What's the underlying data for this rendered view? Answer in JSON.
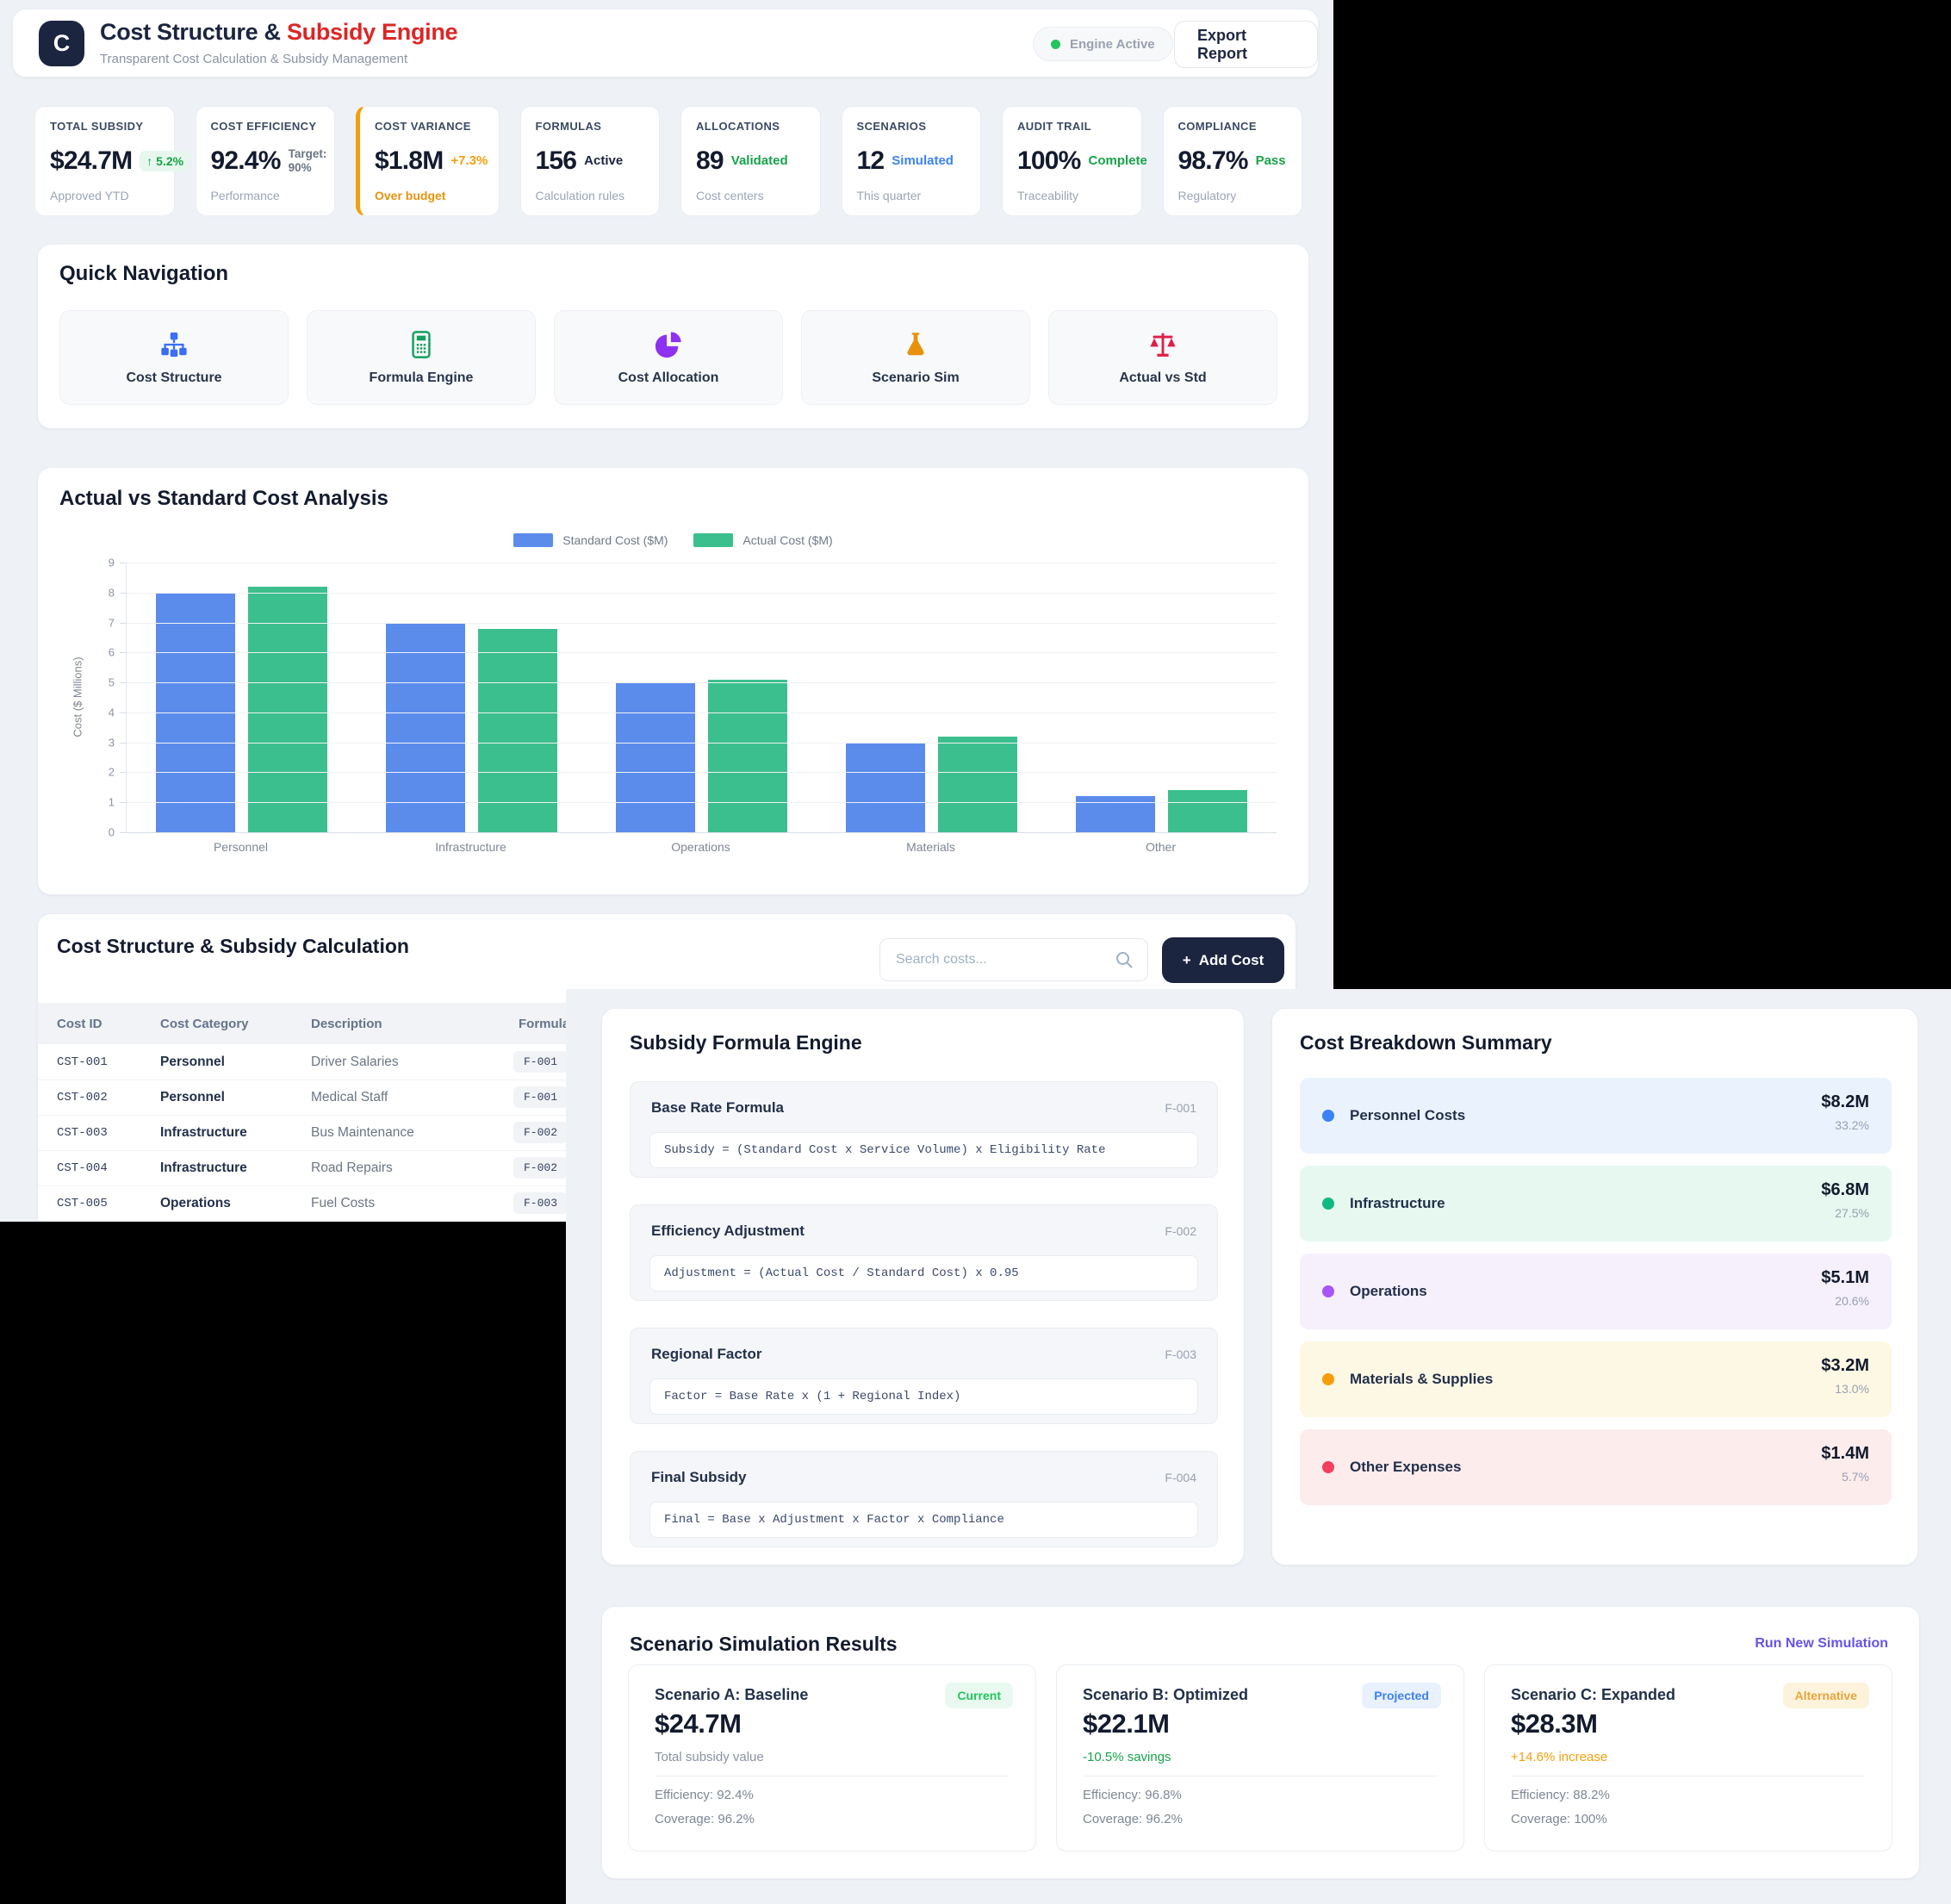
{
  "header": {
    "logo": "C",
    "title_primary": "Cost Structure & ",
    "title_accent": "Subsidy Engine",
    "subtitle": "Transparent Cost Calculation & Subsidy Management",
    "status_label": "Engine Active",
    "status_color": "#22c55e",
    "export_label": "Export Report"
  },
  "kpis": [
    {
      "label": "TOTAL SUBSIDY",
      "value": "$24.7M",
      "delta": "↑ 5.2%",
      "delta_variant": "badge-green",
      "note": "Approved YTD",
      "highlight": false
    },
    {
      "label": "COST EFFICIENCY",
      "value": "92.4%",
      "delta": "Target: 90%",
      "delta_variant": "muted-stack",
      "note": "Performance",
      "highlight": false
    },
    {
      "label": "COST VARIANCE",
      "value": "$1.8M",
      "delta": "+7.3%",
      "delta_variant": "orange",
      "note": "Over budget",
      "note_variant": "orange",
      "highlight": true
    },
    {
      "label": "FORMULAS",
      "value": "156",
      "delta": "Active",
      "delta_variant": "dark",
      "note": "Calculation rules",
      "highlight": false
    },
    {
      "label": "ALLOCATIONS",
      "value": "89",
      "delta": "Validated",
      "delta_variant": "green",
      "note": "Cost centers",
      "highlight": false
    },
    {
      "label": "SCENARIOS",
      "value": "12",
      "delta": "Simulated",
      "delta_variant": "blue",
      "note": "This quarter",
      "highlight": false
    },
    {
      "label": "AUDIT TRAIL",
      "value": "100%",
      "delta": "Complete",
      "delta_variant": "green",
      "note": "Traceability",
      "highlight": false
    },
    {
      "label": "COMPLIANCE",
      "value": "98.7%",
      "delta": "Pass",
      "delta_variant": "green",
      "note": "Regulatory",
      "highlight": false
    }
  ],
  "quick_nav": {
    "title": "Quick Navigation",
    "items": [
      {
        "label": "Cost Structure",
        "icon": "sitemap-icon",
        "color": "#3b6ef5"
      },
      {
        "label": "Formula Engine",
        "icon": "calculator-icon",
        "color": "#14a05e"
      },
      {
        "label": "Cost Allocation",
        "icon": "pie-chart-icon",
        "color": "#8e30f0"
      },
      {
        "label": "Scenario Sim",
        "icon": "flask-icon",
        "color": "#e8910c"
      },
      {
        "label": "Actual vs Std",
        "icon": "scales-icon",
        "color": "#e11d48"
      }
    ]
  },
  "chart_data": {
    "type": "bar",
    "title": "Actual vs Standard Cost Analysis",
    "categories": [
      "Personnel",
      "Infrastructure",
      "Operations",
      "Materials",
      "Other"
    ],
    "series": [
      {
        "name": "Standard Cost ($M)",
        "color": "#5b8cec",
        "values": [
          8.0,
          7.0,
          5.0,
          3.0,
          1.2
        ]
      },
      {
        "name": "Actual Cost ($M)",
        "color": "#3cbf8e",
        "values": [
          8.2,
          6.8,
          5.1,
          3.2,
          1.4
        ]
      }
    ],
    "xlabel": "",
    "ylabel": "Cost ($ Millions)",
    "ylim": [
      0,
      9
    ],
    "ytick_step": 1,
    "grid": true,
    "legend_position": "top"
  },
  "cost_table": {
    "title": "Cost Structure & Subsidy Calculation",
    "search_placeholder": "Search costs...",
    "add_plus": "+",
    "add_label": "Add Cost",
    "columns": [
      "Cost ID",
      "Cost Category",
      "Description",
      "Formula"
    ],
    "rows": [
      {
        "id": "CST-001",
        "category": "Personnel",
        "description": "Driver Salaries",
        "formula": "F-001"
      },
      {
        "id": "CST-002",
        "category": "Personnel",
        "description": "Medical Staff",
        "formula": "F-001"
      },
      {
        "id": "CST-003",
        "category": "Infrastructure",
        "description": "Bus Maintenance",
        "formula": "F-002"
      },
      {
        "id": "CST-004",
        "category": "Infrastructure",
        "description": "Road Repairs",
        "formula": "F-002"
      },
      {
        "id": "CST-005",
        "category": "Operations",
        "description": "Fuel Costs",
        "formula": "F-003"
      }
    ]
  },
  "formula_engine": {
    "title": "Subsidy Formula Engine",
    "formulas": [
      {
        "name": "Base Rate Formula",
        "id": "F-001",
        "expression": "Subsidy = (Standard Cost x Service Volume) x Eligibility Rate"
      },
      {
        "name": "Efficiency Adjustment",
        "id": "F-002",
        "expression": "Adjustment = (Actual Cost / Standard Cost) x 0.95"
      },
      {
        "name": "Regional Factor",
        "id": "F-003",
        "expression": "Factor = Base Rate x (1 + Regional Index)"
      },
      {
        "name": "Final Subsidy",
        "id": "F-004",
        "expression": "Final = Base x Adjustment x Factor x Compliance"
      }
    ]
  },
  "breakdown": {
    "title": "Cost Breakdown Summary",
    "items": [
      {
        "label": "Personnel Costs",
        "value": "$8.2M",
        "pct": "33.2%",
        "dot": "#3b82f6",
        "bg": "#eaf2fd"
      },
      {
        "label": "Infrastructure",
        "value": "$6.8M",
        "pct": "27.5%",
        "dot": "#10b981",
        "bg": "#e7f8f0"
      },
      {
        "label": "Operations",
        "value": "$5.1M",
        "pct": "20.6%",
        "dot": "#a855f7",
        "bg": "#f6effc"
      },
      {
        "label": "Materials & Supplies",
        "value": "$3.2M",
        "pct": "13.0%",
        "dot": "#f59e0b",
        "bg": "#fdf8e4"
      },
      {
        "label": "Other Expenses",
        "value": "$1.4M",
        "pct": "5.7%",
        "dot": "#f43f5e",
        "bg": "#fdecec"
      }
    ]
  },
  "scenarios": {
    "title": "Scenario Simulation Results",
    "action_label": "Run New Simulation",
    "action_color": "#6554e8",
    "cards": [
      {
        "name": "Scenario A: Baseline",
        "badge": "Current",
        "badge_color": "#22c55e",
        "badge_bg": "#e9f9ef",
        "value": "$24.7M",
        "sub": "Total subsidy value",
        "sub_color": "#8a93a3",
        "efficiency": "Efficiency: 92.4%",
        "coverage": "Coverage: 96.2%"
      },
      {
        "name": "Scenario B: Optimized",
        "badge": "Projected",
        "badge_color": "#3b82f6",
        "badge_bg": "#e9f0fe",
        "value": "$22.1M",
        "sub": "-10.5% savings",
        "sub_color": "#16a34a",
        "efficiency": "Efficiency: 96.8%",
        "coverage": "Coverage: 96.2%"
      },
      {
        "name": "Scenario C: Expanded",
        "badge": "Alternative",
        "badge_color": "#eda437",
        "badge_bg": "#fdf3dd",
        "value": "$28.3M",
        "sub": "+14.6% increase",
        "sub_color": "#f59e0b",
        "efficiency": "Efficiency: 88.2%",
        "coverage": "Coverage: 100%"
      }
    ]
  }
}
